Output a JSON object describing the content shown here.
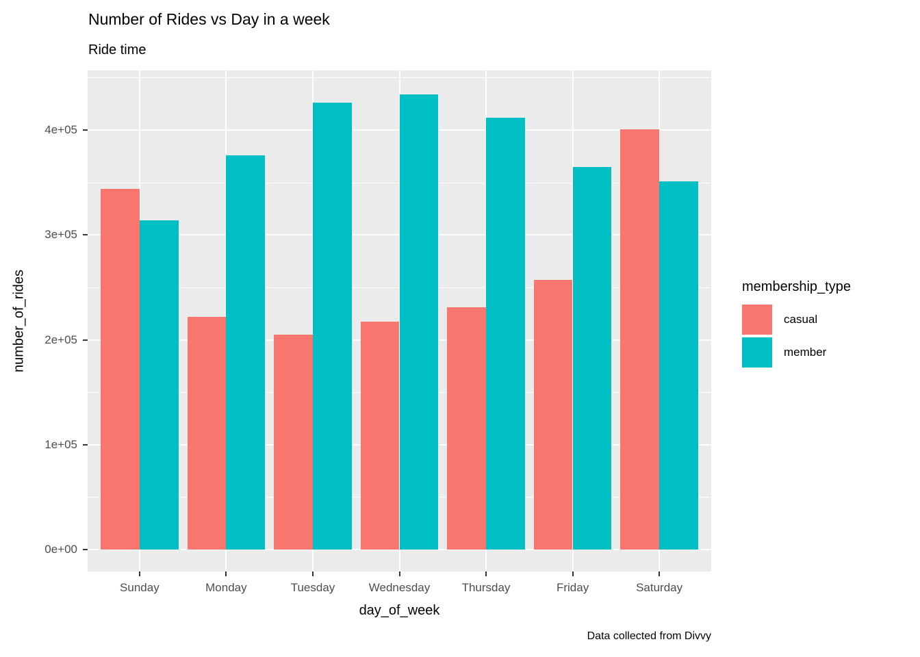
{
  "page": {
    "title": "Number of Rides vs Day in a week",
    "subtitle": "Ride time",
    "caption": "Data collected from Divvy"
  },
  "legend": {
    "title": "membership_type",
    "items": [
      {
        "label": "casual",
        "color": "#F8766D"
      },
      {
        "label": "member",
        "color": "#00BFC4"
      }
    ]
  },
  "chart_data": {
    "type": "bar",
    "title": "Number of Rides vs Day in a week",
    "subtitle": "Ride time",
    "caption": "Data collected from Divvy",
    "xlabel": "day_of_week",
    "ylabel": "number_of_rides",
    "categories": [
      "Sunday",
      "Monday",
      "Tuesday",
      "Wednesday",
      "Thursday",
      "Friday",
      "Saturday"
    ],
    "series": [
      {
        "name": "casual",
        "color": "#F8766D",
        "values": [
          344000,
          222000,
          205000,
          217000,
          231000,
          257000,
          401000
        ]
      },
      {
        "name": "member",
        "color": "#00BFC4",
        "values": [
          314000,
          376000,
          426000,
          434000,
          412000,
          365000,
          351000
        ]
      }
    ],
    "ylim": [
      -21700,
      455300
    ],
    "y_ticks": [
      {
        "value": 0,
        "label": "0e+00"
      },
      {
        "value": 100000,
        "label": "1e+05"
      },
      {
        "value": 200000,
        "label": "2e+05"
      },
      {
        "value": 300000,
        "label": "3e+05"
      },
      {
        "value": 400000,
        "label": "4e+05"
      }
    ],
    "y_minor_ticks": [
      50000,
      150000,
      250000,
      350000,
      450000
    ],
    "grid": true,
    "legend_position": "right",
    "legend_title": "membership_type",
    "bar_group_width": 0.9,
    "panel_bg": "#EBEBEB",
    "grid_color": "#FFFFFF"
  },
  "colors": {
    "axis_text": "#4D4D4D",
    "tick_mark": "#333333",
    "title_text": "#000000",
    "background": "#FFFFFF"
  }
}
